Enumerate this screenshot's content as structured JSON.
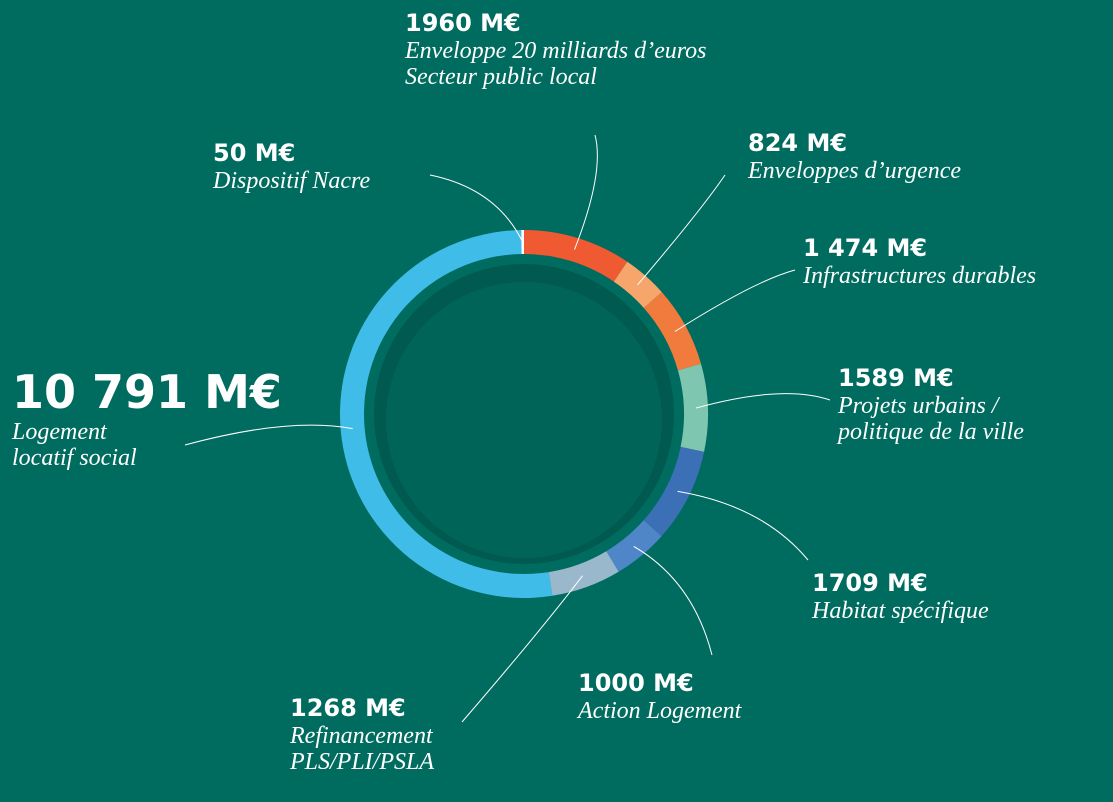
{
  "chart_data": {
    "type": "donut",
    "categories": [
      "Enveloppe 20 milliards d’euros\nSecteur public local",
      "Enveloppes d’urgence",
      "Infrastructures durables",
      "Projets urbains /\npolitique de la ville",
      "Habitat spécifique",
      "Action Logement",
      "Refinancement\nPLS/PLI/PSLA",
      "Logement\nlocatif social",
      "Dispositif Nacre"
    ],
    "values": [
      1960,
      824,
      1474,
      1589,
      1709,
      1000,
      1268,
      10791,
      50
    ],
    "value_labels": [
      "1960 M€",
      "824 M€",
      "1 474 M€",
      "1589 M€",
      "1709 M€",
      "1000 M€",
      "1268 M€",
      "10 791 M€",
      "50 M€"
    ],
    "colors": [
      "#ef5a32",
      "#f6a66a",
      "#f07b3c",
      "#7fc6b0",
      "#3b6fb6",
      "#4f86c8",
      "#9ab8cc",
      "#3fbde8",
      "#ffffff"
    ]
  }
}
